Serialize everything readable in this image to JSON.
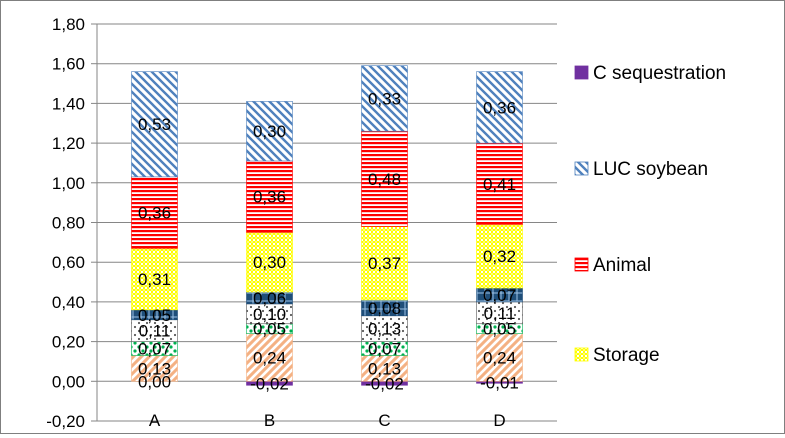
{
  "chart_data": {
    "type": "bar",
    "stacked": true,
    "categories": [
      "A",
      "B",
      "C",
      "D"
    ],
    "ylim": [
      -0.2,
      1.8
    ],
    "ytick_step": 0.2,
    "ytick_labels": [
      "-0,20",
      "0,00",
      "0,20",
      "0,40",
      "0,60",
      "0,80",
      "1,00",
      "1,20",
      "1,40",
      "1,60",
      "1,80"
    ],
    "grid": true,
    "legend_position": "right",
    "title": "",
    "xlabel": "",
    "ylabel": "",
    "series": [
      {
        "key": "csq",
        "name": "C sequestration",
        "color": "#7030a0",
        "pattern": "solid",
        "values": [
          0.0,
          -0.02,
          -0.02,
          -0.01
        ],
        "labels": [
          "0,00",
          "-0,02",
          "-0,02",
          "-0,01"
        ]
      },
      {
        "key": "s1",
        "color": "#f4b183",
        "pattern": "diag-right",
        "values": [
          0.13,
          0.24,
          0.13,
          0.24
        ],
        "labels": [
          "0,13",
          "0,24",
          "0,13",
          "0,24"
        ]
      },
      {
        "key": "s2",
        "color": "#00b050",
        "pattern": "dots",
        "values": [
          0.07,
          0.05,
          0.07,
          0.05
        ],
        "labels": [
          "0,07",
          "0,05",
          "0,07",
          "0,05"
        ]
      },
      {
        "key": "s3",
        "color": "#595959",
        "pattern": "sparse-dots",
        "values": [
          0.11,
          0.1,
          0.13,
          0.11
        ],
        "labels": [
          "0,11",
          "0,10",
          "0,13",
          "0,11"
        ]
      },
      {
        "key": "s4",
        "color": "#1f4e79",
        "pattern": "grid",
        "values": [
          0.05,
          0.06,
          0.08,
          0.07
        ],
        "labels": [
          "0,05",
          "0,06",
          "0,08",
          "0,07"
        ]
      },
      {
        "key": "storage",
        "name": "Storage",
        "color": "#ffff00",
        "pattern": "checker",
        "values": [
          0.31,
          0.3,
          0.37,
          0.32
        ],
        "labels": [
          "0,31",
          "0,30",
          "0,37",
          "0,32"
        ]
      },
      {
        "key": "animal",
        "name": "Animal",
        "color": "#ff0000",
        "pattern": "horizontal",
        "values": [
          0.36,
          0.36,
          0.48,
          0.41
        ],
        "labels": [
          "0,36",
          "0,36",
          "0,48",
          "0,41"
        ]
      },
      {
        "key": "luc",
        "name": "LUC soybean",
        "color": "#4f81bd",
        "pattern": "diag-left",
        "values": [
          0.53,
          0.3,
          0.33,
          0.36
        ],
        "labels": [
          "0,53",
          "0,30",
          "0,33",
          "0,36"
        ]
      }
    ],
    "legend": [
      {
        "key": "csq",
        "label": "C sequestration"
      },
      {
        "key": "luc",
        "label": "LUC soybean"
      },
      {
        "key": "animal",
        "label": "Animal"
      },
      {
        "key": "storage",
        "label": "Storage"
      }
    ]
  }
}
